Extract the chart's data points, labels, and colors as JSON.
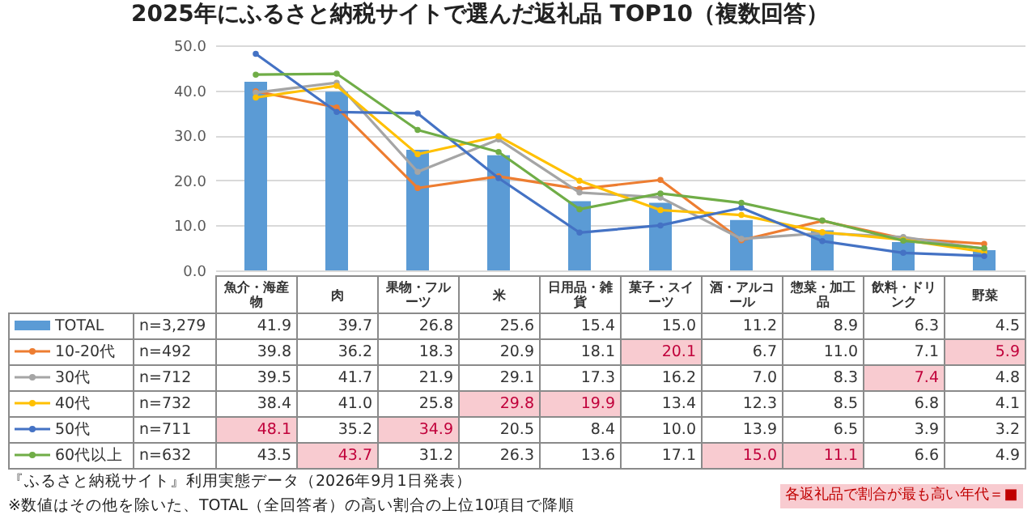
{
  "chart_data": {
    "type": "bar",
    "title": "2025年にふるさと納税サイトで選んだ返礼品 TOP10（複数回答）",
    "categories": [
      "魚介・海産物",
      "肉",
      "果物・フルーツ",
      "米",
      "日用品・雑貨",
      "菓子・スイーツ",
      "酒・アルコール",
      "惣菜・加工品",
      "飲料・ドリンク",
      "野菜"
    ],
    "series": [
      {
        "name": "TOTAL",
        "color": "#5b9bd5",
        "values": [
          41.9,
          39.7,
          26.8,
          25.6,
          15.4,
          15.0,
          11.2,
          8.9,
          6.3,
          4.5
        ],
        "value_labels": [
          "41.9",
          "39.7",
          "26.8",
          "25.6",
          "15.4",
          "15.0",
          "11.2",
          "8.9",
          "6.3",
          "4.5"
        ]
      },
      {
        "name": "10-20代",
        "type": "line",
        "color": "#ed7d31",
        "values": [
          39.8,
          36.2,
          18.3,
          20.9,
          18.1,
          20.1,
          6.7,
          11.0,
          7.1,
          5.9
        ],
        "value_labels": [
          "39.8",
          "36.2",
          "18.3",
          "20.9",
          "18.1",
          "20.1",
          "6.7",
          "11.0",
          "7.1",
          "5.9"
        ]
      },
      {
        "name": "30代",
        "type": "line",
        "color": "#a5a5a5",
        "values": [
          39.5,
          41.7,
          21.9,
          29.1,
          17.3,
          16.2,
          7.0,
          8.3,
          7.4,
          4.8
        ],
        "value_labels": [
          "39.5",
          "41.7",
          "21.9",
          "29.1",
          "17.3",
          "16.2",
          "7.0",
          "8.3",
          "7.4",
          "4.8"
        ]
      },
      {
        "name": "40代",
        "type": "line",
        "color": "#ffc000",
        "values": [
          38.4,
          41.0,
          25.8,
          29.8,
          19.9,
          13.4,
          12.3,
          8.5,
          6.8,
          4.1
        ],
        "value_labels": [
          "38.4",
          "41.0",
          "25.8",
          "29.8",
          "19.9",
          "13.4",
          "12.3",
          "8.5",
          "6.8",
          "4.1"
        ]
      },
      {
        "name": "50代",
        "type": "line",
        "color": "#4472c4",
        "values": [
          48.1,
          35.2,
          34.9,
          20.5,
          8.4,
          10.0,
          13.9,
          6.5,
          3.9,
          3.2
        ],
        "value_labels": [
          "48.1",
          "35.2",
          "34.9",
          "20.5",
          "8.4",
          "10.0",
          "13.9",
          "6.5",
          "3.9",
          "3.2"
        ]
      },
      {
        "name": "60代以上",
        "type": "line",
        "color": "#70ad47",
        "values": [
          43.5,
          43.7,
          31.2,
          26.3,
          13.6,
          17.1,
          15.0,
          11.1,
          6.6,
          4.9
        ],
        "value_labels": [
          "43.5",
          "43.7",
          "31.2",
          "26.3",
          "13.6",
          "17.1",
          "15.0",
          "11.1",
          "6.6",
          "4.9"
        ]
      }
    ],
    "ylim": [
      0,
      50
    ],
    "yticks": [
      {
        "value": 0,
        "label": "0.0"
      },
      {
        "value": 10,
        "label": "10.0"
      },
      {
        "value": 20,
        "label": "20.0"
      },
      {
        "value": 30,
        "label": "30.0"
      },
      {
        "value": 40,
        "label": "40.0"
      },
      {
        "value": 50,
        "label": "50.0"
      }
    ],
    "grid": "y",
    "marker": "circle",
    "legend": "bottom",
    "annotations": [
      "n=3,279",
      "n=492",
      "n=712",
      "n=732",
      "n=711",
      "n=632",
      "『ふるさと納税サイト』利用実態データ（2026年9月1日発表）",
      "※数値はその他を除いた、TOTAL（全回答者）の高い割合の上位10項目で降順",
      "各返礼品で割合が最も高い年代＝■"
    ]
  }
}
